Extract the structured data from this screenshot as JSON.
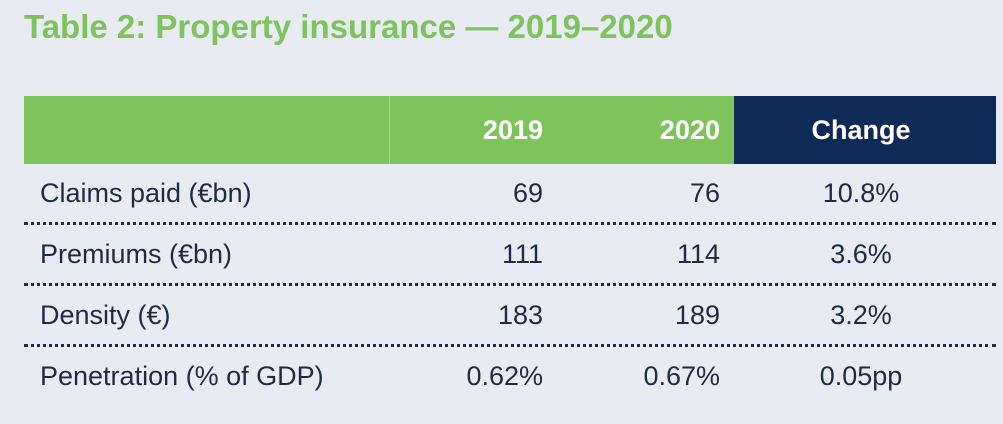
{
  "title": "Table 2: Property insurance — 2019–2020",
  "table": {
    "headers": [
      "",
      "2019",
      "2020",
      "Change"
    ],
    "rows": [
      {
        "label": "Claims paid (€bn)",
        "v2019": "69",
        "v2020": "76",
        "change": "10.8%"
      },
      {
        "label": "Premiums (€bn)",
        "v2019": "111",
        "v2020": "114",
        "change": "3.6%"
      },
      {
        "label": "Density (€)",
        "v2019": "183",
        "v2020": "189",
        "change": "3.2%"
      },
      {
        "label": "Penetration (% of GDP)",
        "v2019": "0.62%",
        "v2020": "0.67%",
        "change": "0.05pp"
      }
    ]
  },
  "colors": {
    "accent_green": "#7ec35b",
    "header_navy": "#0e2a56",
    "background": "#e9ebf3",
    "text": "#1f2a44"
  }
}
